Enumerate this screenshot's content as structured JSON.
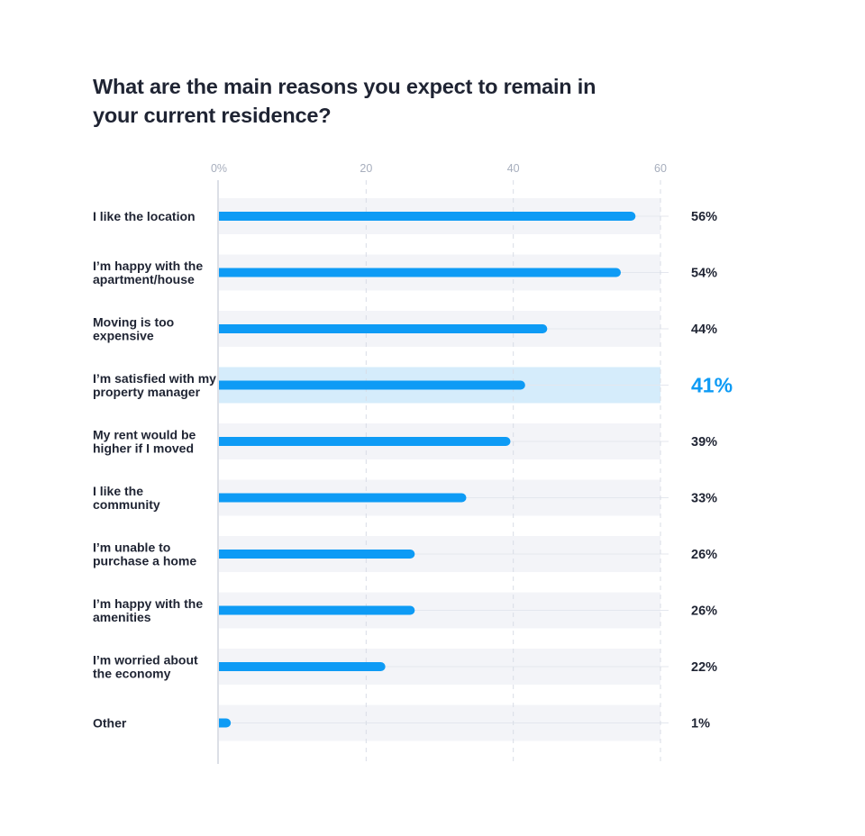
{
  "colors": {
    "bar": "#0e9bf5",
    "row_band": "#f3f4f8",
    "highlight_band": "#d5ecfb",
    "highlight_value": "#0e9bf5",
    "text": "#1f2433",
    "tick_text": "#a7aebd",
    "grid": "#d9dde6",
    "axis": "#dcdfe6"
  },
  "chart_data": {
    "type": "bar",
    "orientation": "horizontal",
    "title": "What are the main reasons you expect to remain in your current residence?",
    "xlim": [
      0,
      60
    ],
    "xticks": [
      0,
      20,
      40,
      60
    ],
    "xtick_labels": [
      "0%",
      "20",
      "40",
      "60"
    ],
    "grid": "vertical dashed",
    "highlighted_index": 3,
    "categories": [
      [
        "I like the location"
      ],
      [
        "I’m happy with the",
        "apartment/house"
      ],
      [
        "Moving is too",
        "expensive"
      ],
      [
        "I’m satisfied with my",
        "property manager"
      ],
      [
        "My rent would be",
        "higher if I moved"
      ],
      [
        "I like the",
        "community"
      ],
      [
        "I’m unable to",
        "purchase a home"
      ],
      [
        "I’m happy with the",
        "amenities"
      ],
      [
        "I’m worried about",
        "the economy"
      ],
      [
        "Other"
      ]
    ],
    "values": [
      56,
      54,
      44,
      41,
      39,
      33,
      26,
      26,
      22,
      1
    ],
    "value_labels": [
      "56%",
      "54%",
      "44%",
      "41%",
      "39%",
      "33%",
      "26%",
      "26%",
      "22%",
      "1%"
    ]
  }
}
